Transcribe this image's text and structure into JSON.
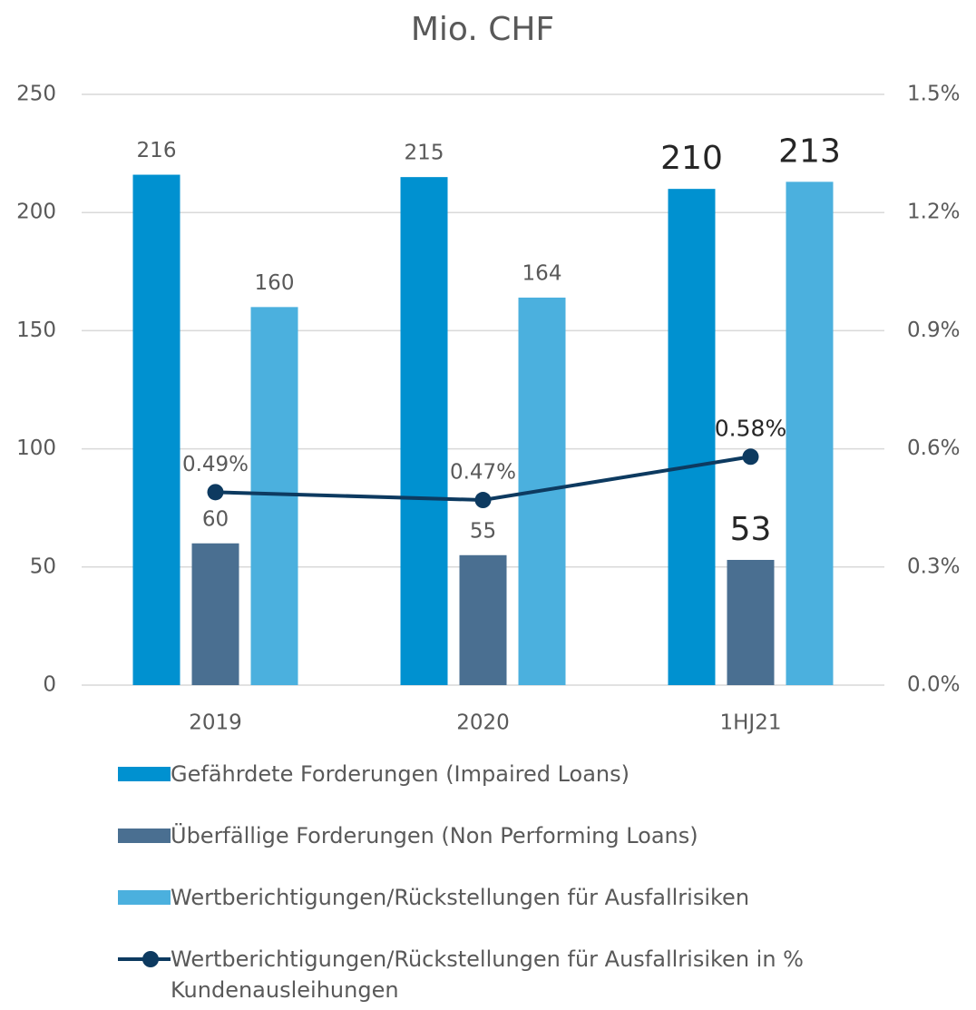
{
  "chart_data": {
    "type": "bar",
    "title": "Mio. CHF",
    "categories": [
      "2019",
      "2020",
      "1HJ21"
    ],
    "series": [
      {
        "name": "Gefährdete Forderungen (Impaired Loans)",
        "color": "#0091d0",
        "values": [
          216,
          215,
          210
        ]
      },
      {
        "name": "Überfällige Forderungen (Non Performing Loans)",
        "color": "#4a6f91",
        "values": [
          60,
          55,
          53
        ]
      },
      {
        "name": "Wertberichtigungen/Rückstellungen für Ausfallrisiken",
        "color": "#4bb0de",
        "values": [
          160,
          164,
          213
        ]
      },
      {
        "name": "Wertberichtigungen/Rückstellungen für Ausfallrisiken in % Kundenausleihungen",
        "color": "#0d3a60",
        "type": "line",
        "axis": "y2",
        "values": [
          0.49,
          0.47,
          0.58
        ],
        "value_labels": [
          "0.49%",
          "0.47%",
          "0.58%"
        ]
      }
    ],
    "ylim": [
      0,
      250
    ],
    "yticks": [
      0,
      50,
      100,
      150,
      200,
      250
    ],
    "y2lim": [
      0,
      1.5
    ],
    "y2ticks": [
      {
        "value": 0,
        "label": "0.0%"
      },
      {
        "value": 0.3,
        "label": "0.3%"
      },
      {
        "value": 0.6,
        "label": "0.6%"
      },
      {
        "value": 0.9,
        "label": "0.9%"
      },
      {
        "value": 1.2,
        "label": "1.2%"
      },
      {
        "value": 1.5,
        "label": "1.5%"
      }
    ],
    "grid": true
  }
}
